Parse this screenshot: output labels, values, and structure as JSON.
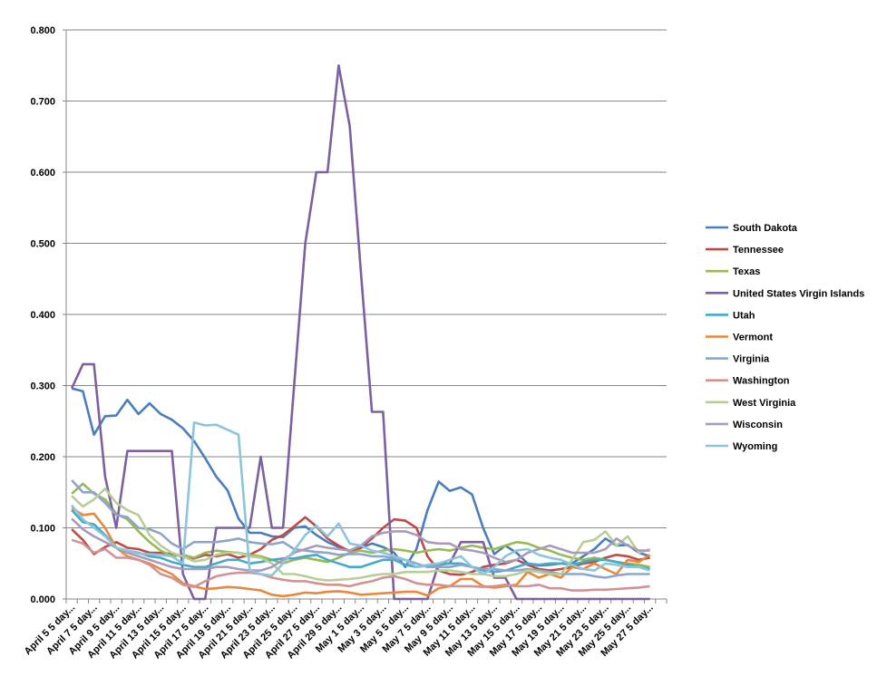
{
  "chart_data": {
    "type": "line",
    "title": "",
    "xlabel": "",
    "ylabel": "",
    "ylim": [
      0,
      0.8
    ],
    "y_ticks": [
      "0.000",
      "0.100",
      "0.200",
      "0.300",
      "0.400",
      "0.500",
      "0.600",
      "0.700",
      "0.800"
    ],
    "grid": "horizontal major gridlines",
    "legend": "right",
    "x_tick_labels": [
      "April 5 5 day...",
      "April 7 5 day...",
      "April 9 5 day...",
      "April 11 5 day...",
      "April 13 5 day...",
      "April 15 5 day...",
      "April 17 5 day...",
      "April 19 5 day...",
      "April 21 5 day...",
      "April 23 5 day...",
      "April 25 5 day...",
      "April 27 5 day...",
      "April 29 5 day...",
      "May 1 5 day...",
      "May 3 5 day...",
      "May 5 5 day...",
      "May 7 5 day...",
      "May 9 5 day...",
      "May 11 5 day...",
      "May 13 5 day...",
      "May 15 5 day...",
      "May 17 5 day...",
      "May 19 5 day...",
      "May 21 5 day...",
      "May 23 5 day...",
      "May 25 5 day...",
      "May 27 5 day..."
    ],
    "series": [
      {
        "name": "South Dakota",
        "color": "#4A7EBB",
        "values": [
          0.296,
          0.292,
          0.231,
          0.257,
          0.258,
          0.28,
          0.26,
          0.275,
          0.26,
          0.252,
          0.24,
          0.222,
          0.198,
          0.172,
          0.153,
          0.113,
          0.093,
          0.093,
          0.088,
          0.087,
          0.1,
          0.102,
          0.09,
          0.08,
          0.073,
          0.068,
          0.072,
          0.078,
          0.073,
          0.065,
          0.045,
          0.07,
          0.125,
          0.165,
          0.152,
          0.157,
          0.147,
          0.1,
          0.063,
          0.075,
          0.065,
          0.05,
          0.047,
          0.048,
          0.05,
          0.05,
          0.06,
          0.07,
          0.085,
          0.075,
          0.076,
          0.065,
          0.06
        ]
      },
      {
        "name": "Tennessee",
        "color": "#BE4B48",
        "values": [
          0.098,
          0.083,
          0.063,
          0.073,
          0.08,
          0.072,
          0.07,
          0.065,
          0.065,
          0.063,
          0.06,
          0.057,
          0.062,
          0.06,
          0.063,
          0.058,
          0.062,
          0.07,
          0.083,
          0.09,
          0.102,
          0.115,
          0.102,
          0.085,
          0.075,
          0.067,
          0.072,
          0.085,
          0.1,
          0.112,
          0.11,
          0.1,
          0.06,
          0.04,
          0.035,
          0.034,
          0.038,
          0.045,
          0.048,
          0.05,
          0.055,
          0.048,
          0.042,
          0.04,
          0.042,
          0.045,
          0.05,
          0.052,
          0.058,
          0.062,
          0.06,
          0.055,
          0.058
        ]
      },
      {
        "name": "Texas",
        "color": "#98B954",
        "values": [
          0.148,
          0.162,
          0.148,
          0.14,
          0.12,
          0.112,
          0.095,
          0.08,
          0.068,
          0.06,
          0.062,
          0.058,
          0.065,
          0.068,
          0.066,
          0.065,
          0.062,
          0.06,
          0.055,
          0.05,
          0.055,
          0.058,
          0.055,
          0.052,
          0.058,
          0.065,
          0.068,
          0.065,
          0.068,
          0.07,
          0.068,
          0.065,
          0.068,
          0.07,
          0.068,
          0.072,
          0.075,
          0.072,
          0.07,
          0.075,
          0.08,
          0.078,
          0.072,
          0.068,
          0.062,
          0.058,
          0.055,
          0.058,
          0.055,
          0.052,
          0.05,
          0.048,
          0.045
        ]
      },
      {
        "name": "United States Virgin Islands",
        "color": "#7D60A0",
        "values": [
          0.296,
          0.33,
          0.33,
          0.172,
          0.1,
          0.208,
          0.208,
          0.208,
          0.208,
          0.208,
          0.035,
          0,
          0,
          0.1,
          0.1,
          0.1,
          0.1,
          0.2,
          0.1,
          0.1,
          0.3,
          0.5,
          0.6,
          0.6,
          0.75,
          0.665,
          0.46,
          0.263,
          0.263,
          0,
          0,
          0,
          0,
          0.05,
          0.05,
          0.08,
          0.08,
          0.08,
          0.03,
          0.03,
          0,
          0,
          0,
          0,
          0,
          0,
          0,
          0,
          0,
          0,
          0,
          0,
          0
        ]
      },
      {
        "name": "Utah",
        "color": "#46AAC5",
        "values": [
          0.125,
          0.108,
          0.105,
          0.09,
          0.072,
          0.068,
          0.065,
          0.06,
          0.058,
          0.052,
          0.048,
          0.045,
          0.045,
          0.05,
          0.055,
          0.055,
          0.05,
          0.052,
          0.055,
          0.057,
          0.057,
          0.06,
          0.062,
          0.055,
          0.05,
          0.045,
          0.045,
          0.05,
          0.055,
          0.055,
          0.048,
          0.045,
          0.047,
          0.048,
          0.05,
          0.05,
          0.045,
          0.04,
          0.038,
          0.04,
          0.045,
          0.05,
          0.048,
          0.05,
          0.05,
          0.048,
          0.052,
          0.055,
          0.055,
          0.052,
          0.048,
          0.045,
          0.042
        ]
      },
      {
        "name": "Vermont",
        "color": "#E8883C",
        "values": [
          0.128,
          0.118,
          0.12,
          0.1,
          0.072,
          0.06,
          0.055,
          0.05,
          0.042,
          0.035,
          0.022,
          0.018,
          0.014,
          0.015,
          0.017,
          0.016,
          0.014,
          0.012,
          0.006,
          0.004,
          0.006,
          0.009,
          0.008,
          0.01,
          0.011,
          0.009,
          0.006,
          0.007,
          0.008,
          0.009,
          0.01,
          0.01,
          0.005,
          0.015,
          0.018,
          0.028,
          0.028,
          0.018,
          0.016,
          0.018,
          0.02,
          0.038,
          0.03,
          0.035,
          0.03,
          0.045,
          0.042,
          0.05,
          0.042,
          0.035,
          0.055,
          0.052,
          0.062
        ]
      },
      {
        "name": "Virginia",
        "color": "#8EA5CB",
        "values": [
          0.167,
          0.15,
          0.15,
          0.135,
          0.118,
          0.115,
          0.1,
          0.098,
          0.092,
          0.078,
          0.07,
          0.08,
          0.08,
          0.08,
          0.082,
          0.085,
          0.08,
          0.078,
          0.077,
          0.08,
          0.07,
          0.068,
          0.066,
          0.065,
          0.062,
          0.063,
          0.063,
          0.06,
          0.06,
          0.057,
          0.055,
          0.05,
          0.045,
          0.045,
          0.045,
          0.048,
          0.045,
          0.042,
          0.042,
          0.04,
          0.04,
          0.042,
          0.04,
          0.038,
          0.035,
          0.035,
          0.035,
          0.032,
          0.03,
          0.033,
          0.035,
          0.035,
          0.035
        ]
      },
      {
        "name": "Washington",
        "color": "#D19392",
        "values": [
          0.083,
          0.078,
          0.065,
          0.07,
          0.058,
          0.058,
          0.055,
          0.048,
          0.035,
          0.03,
          0.02,
          0.017,
          0.025,
          0.032,
          0.035,
          0.037,
          0.037,
          0.035,
          0.03,
          0.027,
          0.025,
          0.025,
          0.022,
          0.02,
          0.02,
          0.018,
          0.022,
          0.025,
          0.03,
          0.032,
          0.028,
          0.022,
          0.02,
          0.02,
          0.018,
          0.018,
          0.018,
          0.017,
          0.018,
          0.02,
          0.018,
          0.018,
          0.02,
          0.015,
          0.015,
          0.012,
          0.012,
          0.013,
          0.013,
          0.014,
          0.015,
          0.016,
          0.018
        ]
      },
      {
        "name": "West Virginia",
        "color": "#B9CD96",
        "values": [
          0.145,
          0.13,
          0.14,
          0.155,
          0.135,
          0.125,
          0.118,
          0.09,
          0.075,
          0.065,
          0.06,
          0.053,
          0.055,
          0.062,
          0.065,
          0.065,
          0.06,
          0.058,
          0.05,
          0.035,
          0.035,
          0.032,
          0.028,
          0.026,
          0.027,
          0.028,
          0.03,
          0.033,
          0.035,
          0.035,
          0.038,
          0.038,
          0.038,
          0.04,
          0.04,
          0.038,
          0.035,
          0.035,
          0.032,
          0.032,
          0.035,
          0.04,
          0.038,
          0.035,
          0.035,
          0.055,
          0.08,
          0.083,
          0.095,
          0.075,
          0.088,
          0.065,
          0.07
        ]
      },
      {
        "name": "Wisconsin",
        "color": "#A99BBD",
        "values": [
          0.113,
          0.098,
          0.088,
          0.08,
          0.072,
          0.065,
          0.06,
          0.055,
          0.05,
          0.045,
          0.042,
          0.042,
          0.042,
          0.045,
          0.045,
          0.042,
          0.04,
          0.04,
          0.045,
          0.055,
          0.065,
          0.07,
          0.075,
          0.072,
          0.07,
          0.068,
          0.075,
          0.088,
          0.093,
          0.095,
          0.095,
          0.09,
          0.08,
          0.078,
          0.078,
          0.07,
          0.068,
          0.065,
          0.058,
          0.052,
          0.055,
          0.065,
          0.07,
          0.075,
          0.07,
          0.065,
          0.065,
          0.065,
          0.07,
          0.085,
          0.075,
          0.068,
          0.068
        ]
      },
      {
        "name": "Wyoming",
        "color": "#8CC5D9",
        "values": [
          0.132,
          0.112,
          0.1,
          0.088,
          0.072,
          0.068,
          0.064,
          0.063,
          0.062,
          0.06,
          0.05,
          0.248,
          0.244,
          0.245,
          0.238,
          0.231,
          0.04,
          0.035,
          0.033,
          0.05,
          0.068,
          0.09,
          0.103,
          0.088,
          0.106,
          0.078,
          0.075,
          0.068,
          0.065,
          0.06,
          0.055,
          0.045,
          0.048,
          0.05,
          0.055,
          0.06,
          0.045,
          0.035,
          0.045,
          0.06,
          0.068,
          0.07,
          0.062,
          0.058,
          0.055,
          0.048,
          0.042,
          0.04,
          0.05,
          0.048,
          0.045,
          0.045,
          0.04
        ]
      }
    ]
  }
}
